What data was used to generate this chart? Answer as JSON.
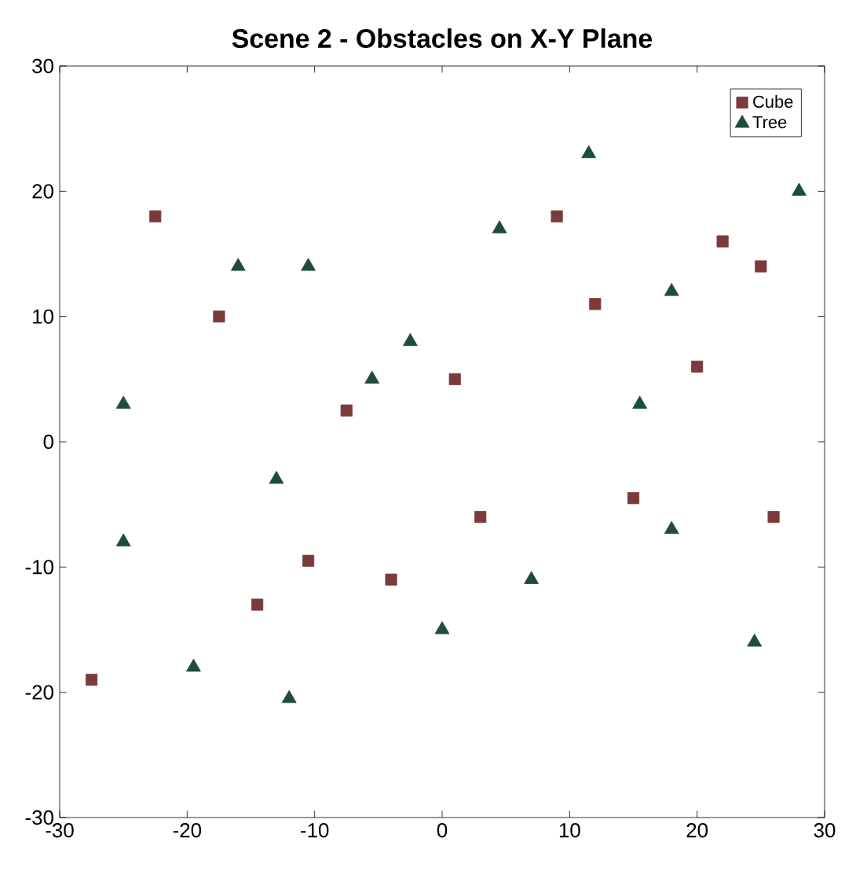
{
  "chart_data": {
    "type": "scatter",
    "title": "Scene 2 - Obstacles on X-Y Plane",
    "xlim": [
      -30,
      30
    ],
    "ylim": [
      -30,
      30
    ],
    "xticks": [
      -30,
      -20,
      -10,
      0,
      10,
      20,
      30
    ],
    "yticks": [
      -30,
      -20,
      -10,
      0,
      10,
      20,
      30
    ],
    "grid": false,
    "legend": "top right",
    "series": [
      {
        "name": "Cube",
        "color": "#7b3b3b",
        "marker": "square",
        "x": [
          -27.5,
          -22.5,
          -17.5,
          -7.5,
          -10.5,
          -14.5,
          -4,
          1,
          3,
          9,
          12,
          15,
          20,
          22,
          25,
          26
        ],
        "values": [
          -19,
          18,
          10,
          2.5,
          -9.5,
          -13,
          -11,
          5,
          -6,
          18,
          11,
          -4.5,
          6,
          16,
          14,
          -6
        ]
      },
      {
        "name": "Tree",
        "color": "#1e4d3a",
        "marker": "triangle",
        "x": [
          -25,
          -25,
          -16,
          -10.5,
          -13,
          -19.5,
          -12,
          -5.5,
          -2.5,
          0,
          4.5,
          7,
          11.5,
          15.5,
          18,
          18,
          24.5,
          28
        ],
        "values": [
          3,
          -8,
          14,
          14,
          -3,
          -18,
          -20.5,
          5,
          8,
          -15,
          17,
          -11,
          23,
          3,
          12,
          -7,
          -16,
          20
        ]
      }
    ]
  }
}
